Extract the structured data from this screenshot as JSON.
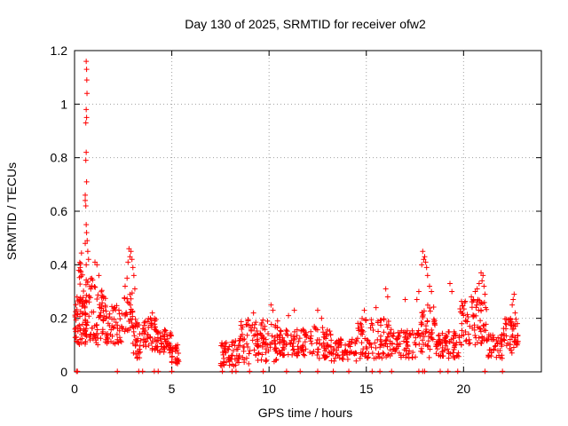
{
  "chart_data": {
    "type": "scatter",
    "title": "Day 130 of 2025, SRMTID for receiver ofw2",
    "xlabel": "GPS time / hours",
    "ylabel": "SRMTID / TECUs",
    "xlim": [
      0,
      24
    ],
    "ylim": [
      0,
      1.2
    ],
    "grid": true,
    "marker": "+",
    "color": "#ff0000",
    "x_ticks": [
      "0",
      "5",
      "10",
      "15",
      "20"
    ],
    "y_ticks": [
      "0",
      "0.2",
      "0.4",
      "0.6",
      "0.8",
      "1",
      "1.2"
    ],
    "clusters": [
      {
        "x0": 0.0,
        "x1": 0.6,
        "y_lo": 0.1,
        "y_hi": 0.28,
        "n": 60
      },
      {
        "x0": 0.2,
        "x1": 0.5,
        "y_lo": 0.3,
        "y_hi": 0.45,
        "n": 12
      },
      {
        "x0": 0.55,
        "x1": 1.0,
        "y_lo": 0.08,
        "y_hi": 0.35,
        "n": 40
      },
      {
        "x0": 1.0,
        "x1": 1.6,
        "y_lo": 0.1,
        "y_hi": 0.32,
        "n": 45
      },
      {
        "x0": 1.6,
        "x1": 2.5,
        "y_lo": 0.1,
        "y_hi": 0.25,
        "n": 50
      },
      {
        "x0": 2.5,
        "x1": 3.0,
        "y_lo": 0.15,
        "y_hi": 0.3,
        "n": 30
      },
      {
        "x0": 3.0,
        "x1": 3.4,
        "y_lo": 0.05,
        "y_hi": 0.2,
        "n": 30
      },
      {
        "x0": 3.4,
        "x1": 4.2,
        "y_lo": 0.08,
        "y_hi": 0.2,
        "n": 50
      },
      {
        "x0": 4.2,
        "x1": 5.0,
        "y_lo": 0.07,
        "y_hi": 0.16,
        "n": 50
      },
      {
        "x0": 5.0,
        "x1": 5.4,
        "y_lo": 0.03,
        "y_hi": 0.11,
        "n": 25
      },
      {
        "x0": 7.5,
        "x1": 8.5,
        "y_lo": 0.02,
        "y_hi": 0.12,
        "n": 60
      },
      {
        "x0": 8.5,
        "x1": 10.5,
        "y_lo": 0.03,
        "y_hi": 0.2,
        "n": 110
      },
      {
        "x0": 10.5,
        "x1": 12.0,
        "y_lo": 0.06,
        "y_hi": 0.16,
        "n": 80
      },
      {
        "x0": 12.0,
        "x1": 13.2,
        "y_lo": 0.05,
        "y_hi": 0.17,
        "n": 60
      },
      {
        "x0": 13.2,
        "x1": 14.5,
        "y_lo": 0.04,
        "y_hi": 0.13,
        "n": 60
      },
      {
        "x0": 14.5,
        "x1": 16.2,
        "y_lo": 0.05,
        "y_hi": 0.2,
        "n": 90
      },
      {
        "x0": 16.2,
        "x1": 17.8,
        "y_lo": 0.05,
        "y_hi": 0.16,
        "n": 80
      },
      {
        "x0": 17.8,
        "x1": 18.6,
        "y_lo": 0.05,
        "y_hi": 0.25,
        "n": 50
      },
      {
        "x0": 18.6,
        "x1": 19.8,
        "y_lo": 0.05,
        "y_hi": 0.15,
        "n": 70
      },
      {
        "x0": 19.8,
        "x1": 21.2,
        "y_lo": 0.1,
        "y_hi": 0.27,
        "n": 80
      },
      {
        "x0": 21.2,
        "x1": 22.0,
        "y_lo": 0.05,
        "y_hi": 0.14,
        "n": 40
      },
      {
        "x0": 22.0,
        "x1": 22.8,
        "y_lo": 0.07,
        "y_hi": 0.2,
        "n": 50
      }
    ],
    "peaks": [
      {
        "x": 0.6,
        "y": 1.16
      },
      {
        "x": 0.62,
        "y": 1.13
      },
      {
        "x": 0.63,
        "y": 1.09
      },
      {
        "x": 0.64,
        "y": 1.04
      },
      {
        "x": 0.6,
        "y": 0.98
      },
      {
        "x": 0.62,
        "y": 0.95
      },
      {
        "x": 0.58,
        "y": 0.93
      },
      {
        "x": 0.6,
        "y": 0.82
      },
      {
        "x": 0.58,
        "y": 0.79
      },
      {
        "x": 0.62,
        "y": 0.71
      },
      {
        "x": 0.55,
        "y": 0.66
      },
      {
        "x": 0.55,
        "y": 0.64
      },
      {
        "x": 0.58,
        "y": 0.62
      },
      {
        "x": 0.6,
        "y": 0.55
      },
      {
        "x": 0.62,
        "y": 0.52
      },
      {
        "x": 0.65,
        "y": 0.49
      },
      {
        "x": 0.55,
        "y": 0.48
      },
      {
        "x": 0.68,
        "y": 0.45
      },
      {
        "x": 0.72,
        "y": 0.42
      },
      {
        "x": 0.6,
        "y": 0.4
      },
      {
        "x": 1.05,
        "y": 0.41
      },
      {
        "x": 1.15,
        "y": 0.4
      },
      {
        "x": 1.25,
        "y": 0.36
      },
      {
        "x": 2.8,
        "y": 0.46
      },
      {
        "x": 2.9,
        "y": 0.45
      },
      {
        "x": 2.85,
        "y": 0.43
      },
      {
        "x": 2.95,
        "y": 0.42
      },
      {
        "x": 2.75,
        "y": 0.41
      },
      {
        "x": 3.0,
        "y": 0.39
      },
      {
        "x": 3.05,
        "y": 0.36
      },
      {
        "x": 2.7,
        "y": 0.35
      },
      {
        "x": 2.6,
        "y": 0.32
      },
      {
        "x": 3.1,
        "y": 0.31
      },
      {
        "x": 17.9,
        "y": 0.45
      },
      {
        "x": 18.0,
        "y": 0.43
      },
      {
        "x": 17.95,
        "y": 0.42
      },
      {
        "x": 18.05,
        "y": 0.41
      },
      {
        "x": 18.1,
        "y": 0.39
      },
      {
        "x": 17.85,
        "y": 0.4
      },
      {
        "x": 18.15,
        "y": 0.36
      },
      {
        "x": 18.25,
        "y": 0.32
      },
      {
        "x": 18.35,
        "y": 0.3
      },
      {
        "x": 17.7,
        "y": 0.3
      },
      {
        "x": 17.6,
        "y": 0.27
      },
      {
        "x": 20.9,
        "y": 0.37
      },
      {
        "x": 21.0,
        "y": 0.36
      },
      {
        "x": 20.95,
        "y": 0.34
      },
      {
        "x": 20.8,
        "y": 0.33
      },
      {
        "x": 21.05,
        "y": 0.32
      },
      {
        "x": 20.7,
        "y": 0.31
      },
      {
        "x": 20.6,
        "y": 0.3
      },
      {
        "x": 21.1,
        "y": 0.29
      },
      {
        "x": 20.5,
        "y": 0.27
      },
      {
        "x": 20.4,
        "y": 0.28
      },
      {
        "x": 19.3,
        "y": 0.33
      },
      {
        "x": 19.4,
        "y": 0.3
      },
      {
        "x": 22.6,
        "y": 0.29
      },
      {
        "x": 22.55,
        "y": 0.27
      },
      {
        "x": 22.5,
        "y": 0.25
      },
      {
        "x": 22.65,
        "y": 0.22
      },
      {
        "x": 16.0,
        "y": 0.31
      },
      {
        "x": 16.1,
        "y": 0.28
      },
      {
        "x": 17.0,
        "y": 0.27
      },
      {
        "x": 15.5,
        "y": 0.24
      },
      {
        "x": 14.9,
        "y": 0.23
      },
      {
        "x": 10.1,
        "y": 0.25
      },
      {
        "x": 10.2,
        "y": 0.23
      },
      {
        "x": 9.2,
        "y": 0.22
      },
      {
        "x": 11.3,
        "y": 0.23
      },
      {
        "x": 11.0,
        "y": 0.21
      },
      {
        "x": 12.5,
        "y": 0.23
      },
      {
        "x": 12.7,
        "y": 0.2
      },
      {
        "x": 4.0,
        "y": 0.22
      },
      {
        "x": 3.9,
        "y": 0.2
      }
    ],
    "floor_points": [
      0.1,
      0.15,
      2.2,
      3.3,
      3.5,
      4.1,
      4.3,
      5.0,
      7.6,
      8.1,
      8.3,
      9.0,
      9.7,
      10.9,
      11.6,
      12.5,
      13.3,
      14.1,
      15.3,
      15.7,
      16.3,
      17.7,
      17.9,
      18.0,
      18.8,
      19.2,
      19.7,
      21.1,
      22.0
    ]
  }
}
